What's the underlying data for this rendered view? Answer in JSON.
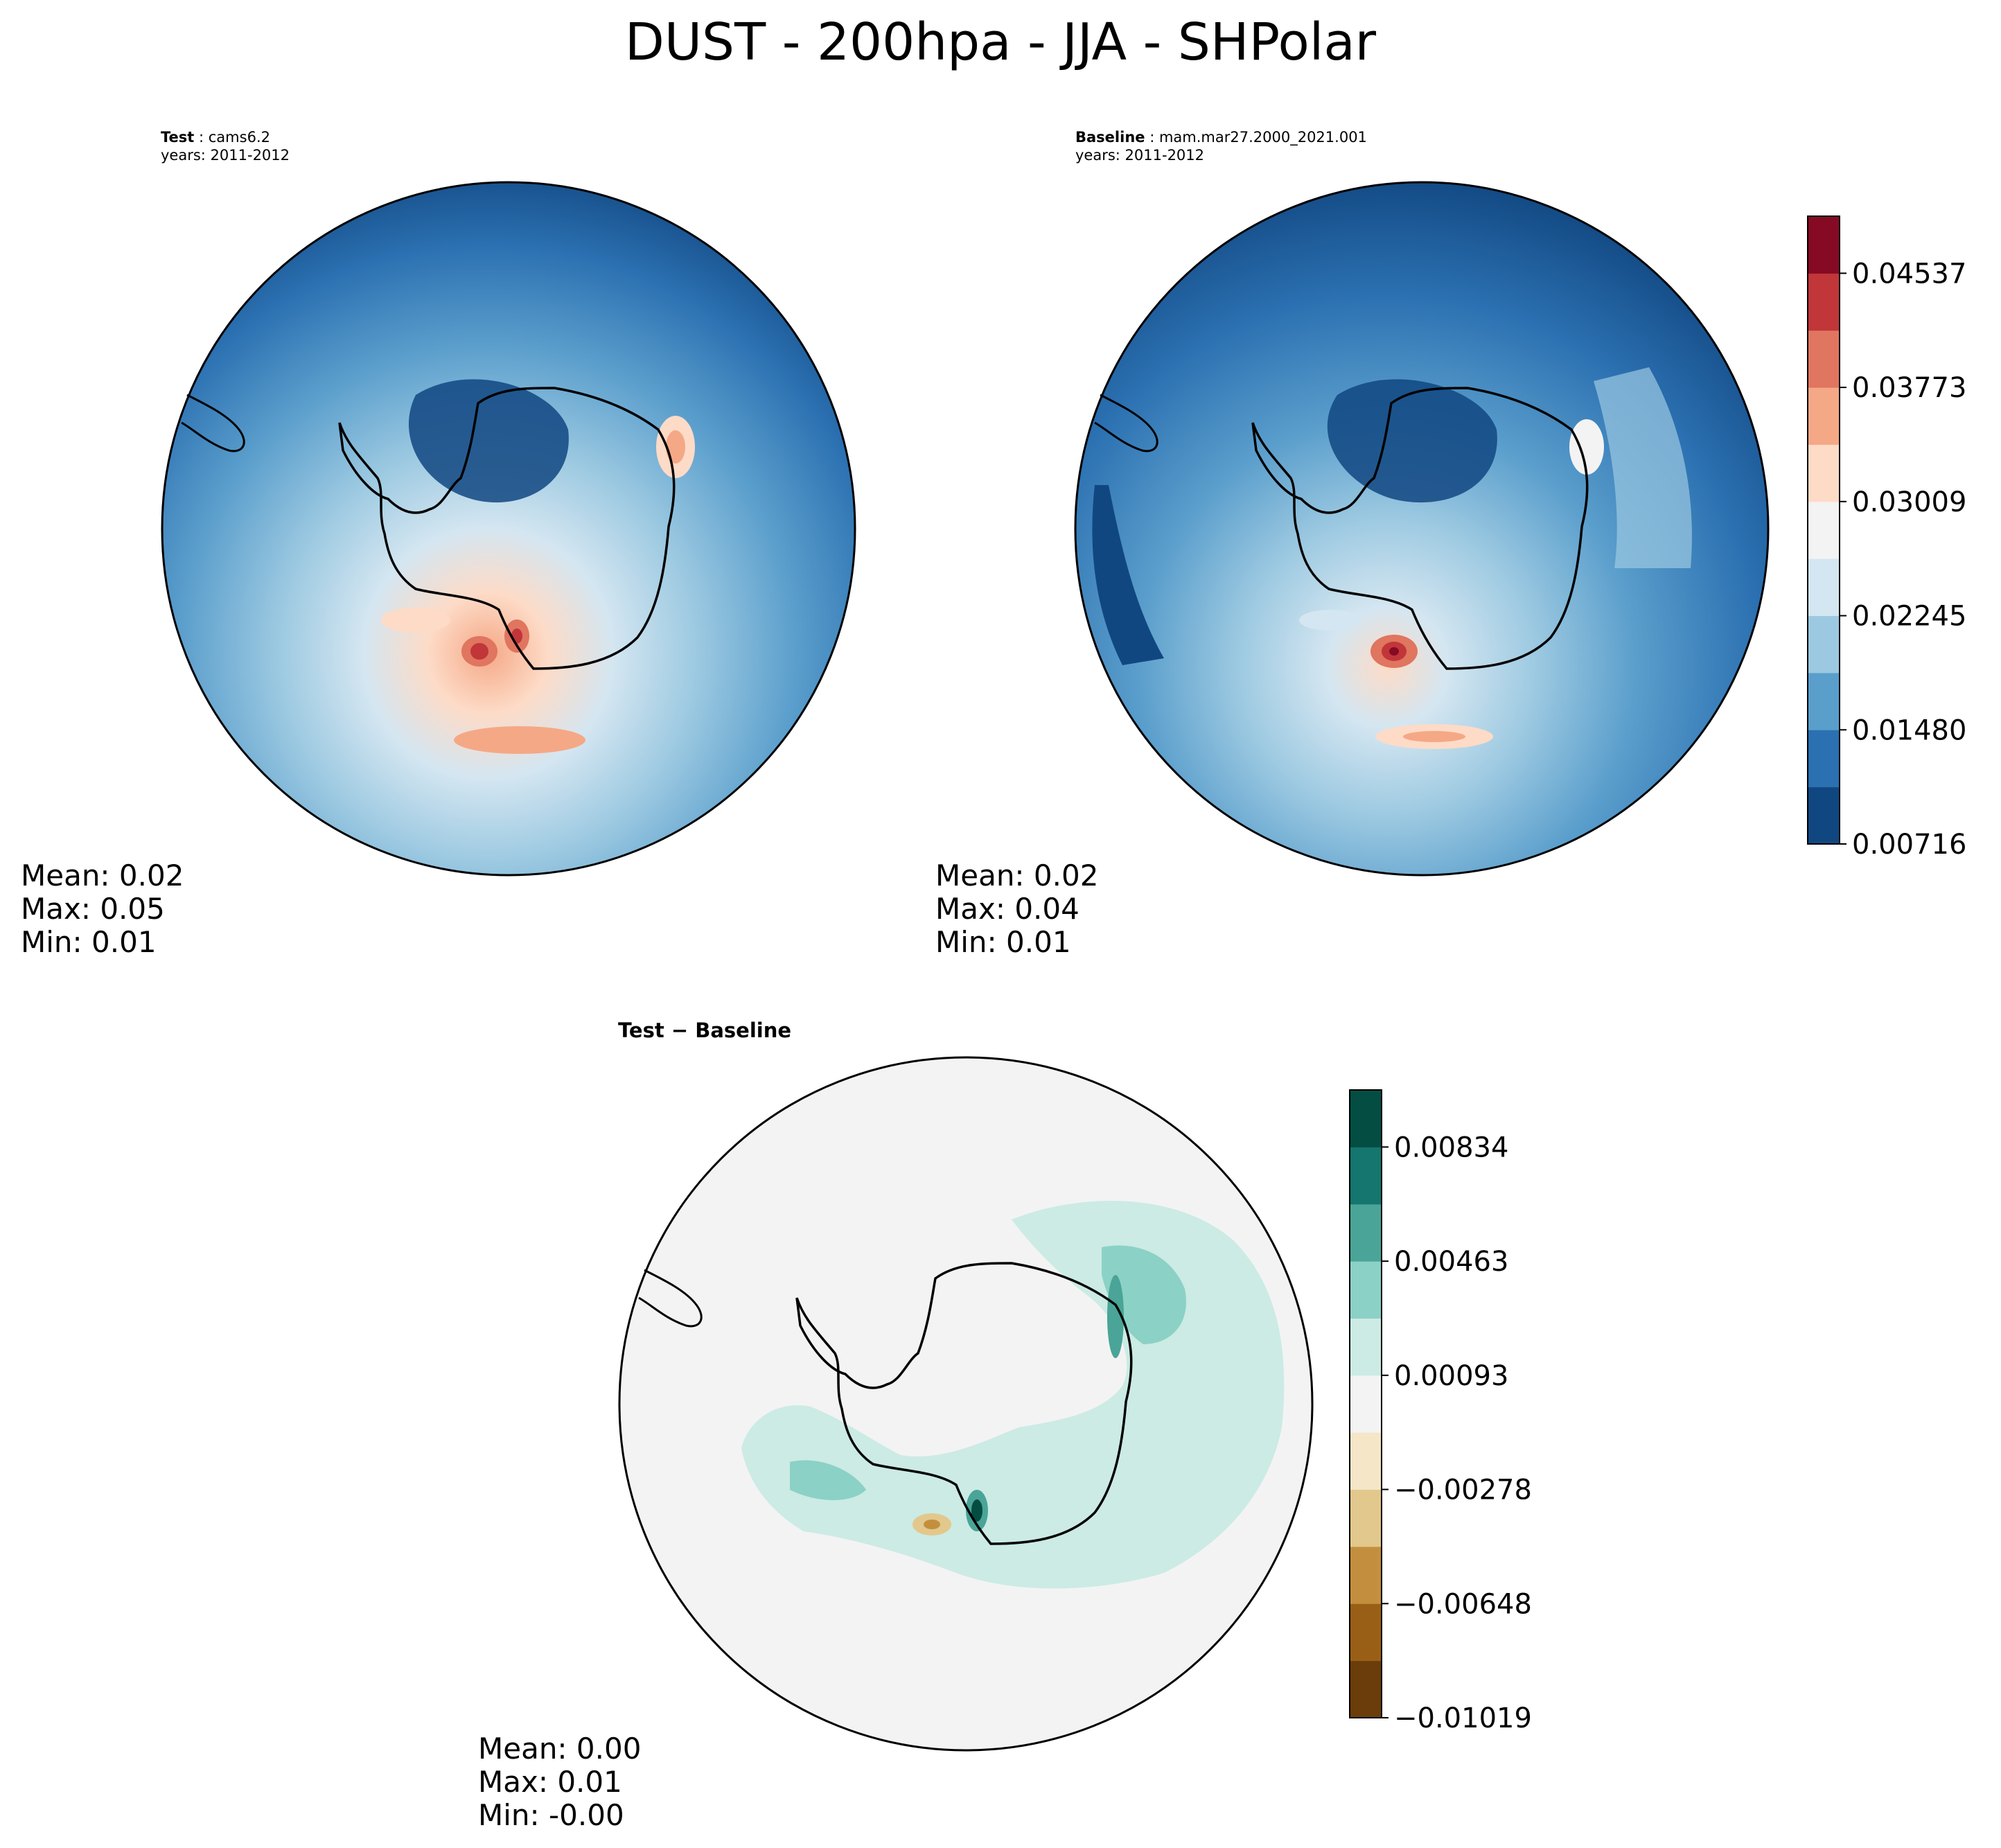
{
  "title": "DUST - 200hpa - JJA - SHPolar",
  "test_panel": {
    "label": "Test",
    "case": "cams6.2",
    "years": "years: 2011-2012",
    "stats": {
      "mean": "Mean:  0.02",
      "max": "Max:  0.05",
      "min": "Min:  0.01"
    }
  },
  "baseline_panel": {
    "label": "Baseline",
    "case": "mam.mar27.2000_2021.001",
    "years": "years: 2011-2012",
    "stats": {
      "mean": "Mean:  0.02",
      "max": "Max:  0.04",
      "min": "Min:  0.01"
    }
  },
  "diff_panel": {
    "title": "Test − Baseline",
    "stats": {
      "mean": "Mean:  0.00",
      "max": "Max:  0.01",
      "min": "Min: -0.00"
    }
  },
  "colorbar_main": {
    "colormap": "RdBu_r",
    "colors": [
      "#114781",
      "#2b70b1",
      "#5a9ecc",
      "#9cc9e1",
      "#d4e6f1",
      "#f3f3f3",
      "#fddbc7",
      "#f5a886",
      "#e07560",
      "#c13639",
      "#860a24"
    ],
    "ticks": [
      "0.00716",
      "0.01480",
      "0.02245",
      "0.03009",
      "0.03773",
      "0.04537"
    ]
  },
  "colorbar_diff": {
    "colormap": "BrBG",
    "colors": [
      "#6a3d0a",
      "#9a5f16",
      "#c38f3f",
      "#e2c88c",
      "#f4e6c6",
      "#f3f3f3",
      "#cbebe4",
      "#8cd1c5",
      "#4aa497",
      "#14766e",
      "#044d43"
    ],
    "ticks": [
      "−0.01019",
      "−0.00648",
      "−0.00278",
      "0.00093",
      "0.00463",
      "0.00834"
    ]
  }
}
